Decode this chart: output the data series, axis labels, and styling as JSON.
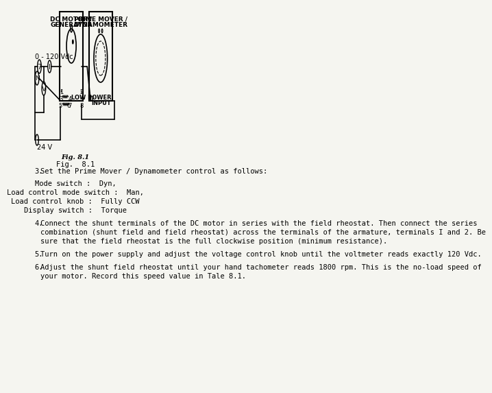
{
  "title": "",
  "background_color": "#f5f5f0",
  "fig_caption_bold": "Fig. 8.1",
  "fig_caption_italic": "Fig. 8.1",
  "text_blocks": [
    {
      "number": "3.",
      "indent": 0.08,
      "text": "Set the Prime Mover / Dynamometer control as follows:"
    }
  ],
  "centered_lines": [
    "Mode switch :  Dyn,",
    "Load control mode switch :  Man,",
    "Load control knob :  Fully CCW",
    "Display switch :  Torque"
  ],
  "paragraph4": "Connect the shunt terminals of the DC motor in series with the field rheostat. Then connect the series combination (shunt field and field rheostat) across the terminals of the armature, terminals I and 2. Be sure that the field rheostat is the full clockwise position (minimum resistance).",
  "paragraph5": "Turn on the power supply and adjust the voltage control knob until the voltmeter reads exactly 120 Vdc.",
  "paragraph6": "Adjust the shunt field rheostat until your hand tachometer reads 1800 rpm. This is the no-load speed of your motor. Record this speed value in Tale 8.1."
}
